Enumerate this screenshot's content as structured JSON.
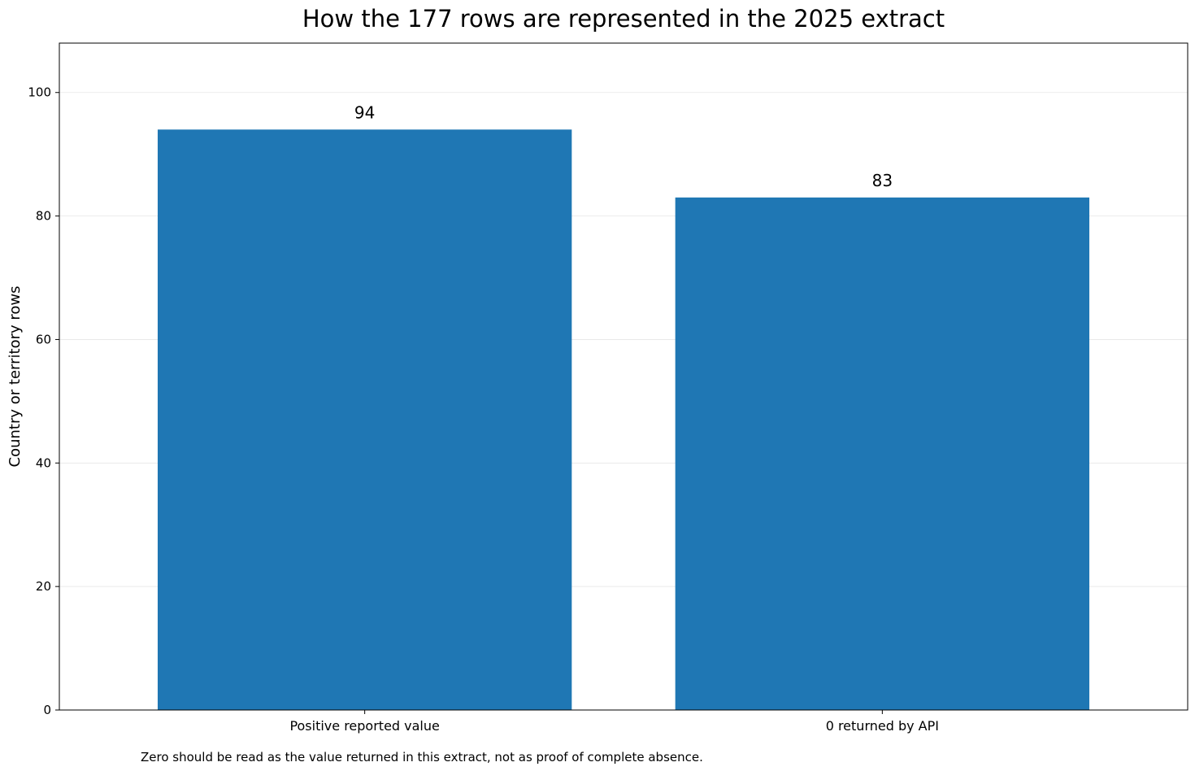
{
  "chart_data": {
    "type": "bar",
    "title": "How the 177 rows are represented in the 2025 extract",
    "xlabel": "",
    "ylabel": "Country or territory rows",
    "categories": [
      "Positive reported value",
      "0 returned by API"
    ],
    "values": [
      94,
      83
    ],
    "ylim": [
      0,
      108
    ],
    "yticks": [
      0,
      20,
      40,
      60,
      80,
      100
    ],
    "grid": "horizontal",
    "bar_color": "#1f77b4",
    "footnote": "Zero should be read as the value returned in this extract, not as proof of complete absence."
  }
}
